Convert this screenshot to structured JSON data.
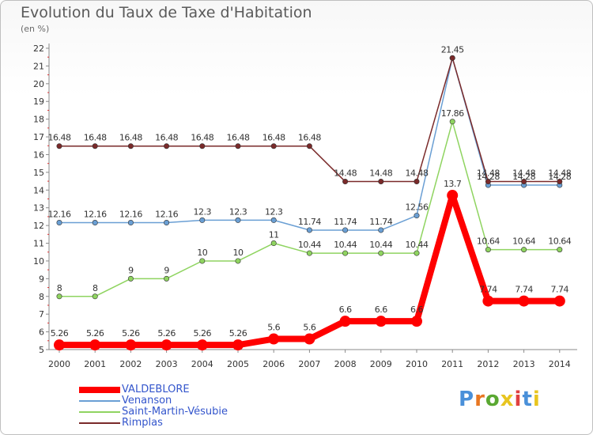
{
  "header": {
    "title": "Evolution du Taux de Taxe d'Habitation",
    "subtitle": "(en %)"
  },
  "logo": {
    "text": "Proxiti",
    "letter_colors": [
      "#4a90d9",
      "#e87722",
      "#5aa832",
      "#e8c520",
      "#e04040",
      "#4a90d9",
      "#e8c520"
    ]
  },
  "chart_data": {
    "type": "line",
    "title": "Evolution du Taux de Taxe d'Habitation",
    "ylabel": "(en %)",
    "xlabel": "",
    "x": [
      "2000",
      "2001",
      "2002",
      "2003",
      "2004",
      "2005",
      "2006",
      "2007",
      "2008",
      "2009",
      "2010",
      "2011",
      "2012",
      "2013",
      "2014"
    ],
    "ylim": [
      5,
      22
    ],
    "yticks": [
      "5",
      "6",
      "7",
      "8",
      "9",
      "10",
      "11",
      "12",
      "13",
      "14",
      "15",
      "16",
      "17",
      "18",
      "19",
      "20",
      "21",
      "22"
    ],
    "grid": false,
    "legend_position": "bottom-left",
    "series": [
      {
        "name": "VALDEBLORE",
        "color": "#ff0000",
        "emphasis": true,
        "values": [
          5.26,
          5.26,
          5.26,
          5.26,
          5.26,
          5.26,
          5.6,
          5.6,
          6.6,
          6.6,
          6.6,
          13.7,
          7.74,
          7.74,
          7.74
        ],
        "labels": [
          "5.26",
          "5.26",
          "5.26",
          "5.26",
          "5.26",
          "5.26",
          "5.6",
          "5.6",
          "6.6",
          "6.6",
          "6.6",
          "13.7",
          "7.74",
          "7.74",
          "7.74"
        ]
      },
      {
        "name": "Venanson",
        "color": "#6a9fd4",
        "values": [
          12.16,
          12.16,
          12.16,
          12.16,
          12.3,
          12.3,
          12.3,
          11.74,
          11.74,
          11.74,
          12.56,
          21.45,
          14.28,
          14.28,
          14.28
        ],
        "labels": [
          "12.16",
          "12.16",
          "12.16",
          "12.16",
          "12.3",
          "12.3",
          "12.3",
          "11.74",
          "11.74",
          "11.74",
          "12.56",
          "",
          "14.28",
          "14.28",
          "14.28"
        ]
      },
      {
        "name": "Saint-Martin-Vésubie",
        "color": "#8fd460",
        "values": [
          8,
          8,
          9,
          9,
          10,
          10,
          11,
          10.44,
          10.44,
          10.44,
          10.44,
          17.86,
          10.64,
          10.64,
          10.64
        ],
        "labels": [
          "8",
          "8",
          "9",
          "9",
          "10",
          "10",
          "11",
          "10.44",
          "10.44",
          "10.44",
          "10.44",
          "17.86",
          "10.64",
          "10.64",
          "10.64"
        ]
      },
      {
        "name": "Rimplas",
        "color": "#7a2a2a",
        "values": [
          16.48,
          16.48,
          16.48,
          16.48,
          16.48,
          16.48,
          16.48,
          16.48,
          14.48,
          14.48,
          14.48,
          21.45,
          14.48,
          14.48,
          14.48
        ],
        "labels": [
          "16.48",
          "16.48",
          "16.48",
          "16.48",
          "16.48",
          "16.48",
          "16.48",
          "16.48",
          "14.48",
          "14.48",
          "14.48",
          "21.45",
          "14.48",
          "14.48",
          "14.48"
        ]
      }
    ]
  }
}
